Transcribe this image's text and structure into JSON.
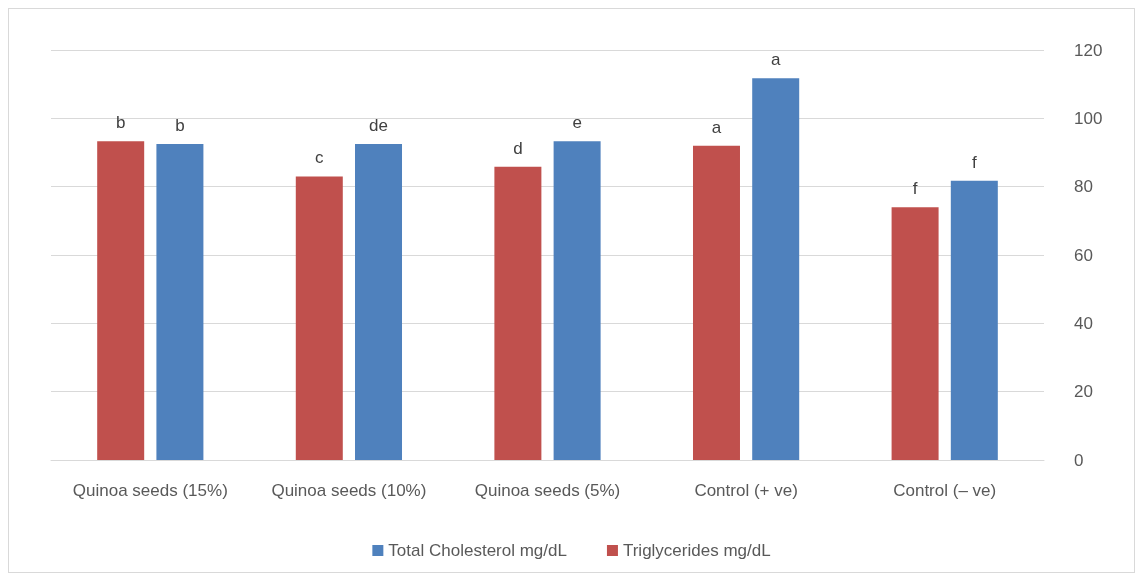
{
  "chart_data": {
    "type": "bar",
    "categories": [
      "Quinoa seeds (15%)",
      "Quinoa seeds (10%)",
      "Quinoa seeds (5%)",
      "Control (+ ve)",
      "Control (– ve)"
    ],
    "series": [
      {
        "name": "Triglycerides mg/dL",
        "color": "#c0504d",
        "values": [
          93.3,
          83,
          85.8,
          92,
          74
        ],
        "value_labels": [
          "b",
          "c",
          "d",
          "a",
          "f"
        ]
      },
      {
        "name": "Total Cholesterol mg/dL",
        "color": "#4f81bd",
        "values": [
          92.5,
          92.5,
          93.3,
          111.7,
          81.7
        ],
        "value_labels": [
          "b",
          "de",
          "e",
          "a",
          "f"
        ]
      }
    ],
    "ylim": [
      0,
      120
    ],
    "yticks": [
      0,
      20,
      40,
      60,
      80,
      100,
      120
    ],
    "grid": "y",
    "legend": "bottom"
  }
}
